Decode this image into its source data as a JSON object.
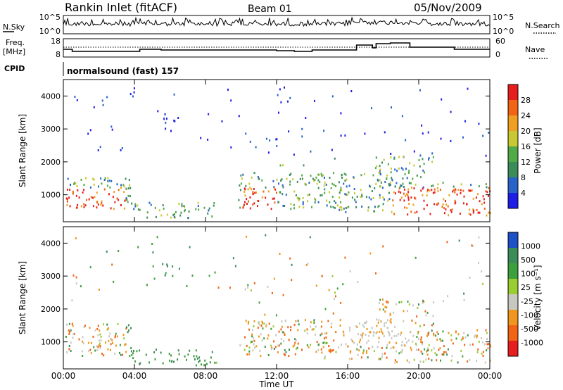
{
  "header": {
    "title": "Rankin Inlet (fitACF)",
    "beam": "Beam 01",
    "date": "05/Nov/2009"
  },
  "nsky_panel": {
    "left_label": "N.Sky",
    "right_label": "N.Search",
    "left_ticks": [
      "10^5",
      "10^0"
    ],
    "right_ticks": [
      "10^5",
      "10^0"
    ]
  },
  "freq_panel": {
    "left_label_line1": "Freq.",
    "left_label_line2": "[MHz]",
    "right_label": "Nave",
    "left_ticks": [
      "18",
      "8"
    ],
    "right_ticks": [
      "60",
      "0"
    ]
  },
  "cpid_panel": {
    "label": "CPID",
    "value": "normalsound (fast) 157"
  },
  "colors": {
    "power": [
      "#1e1ee6",
      "#2864c8",
      "#3c8c5a",
      "#50aa46",
      "#c8c832",
      "#f0a020",
      "#f06414",
      "#e61e1e"
    ],
    "velocity": [
      "#e61e1e",
      "#f06414",
      "#f0961e",
      "#c8c8c0",
      "#9acd32",
      "#3ca03c",
      "#3c8c5a",
      "#1e50c8"
    ]
  },
  "chart_data": [
    {
      "type": "heatmap",
      "title": "",
      "ylabel": "Slant Range [km]",
      "xlabel": "",
      "x_ticks": [
        "00:00",
        "04:00",
        "08:00",
        "12:00",
        "16:00",
        "20:00",
        "00:00"
      ],
      "xlim": [
        0,
        24
      ],
      "ylim": [
        180,
        4500
      ],
      "y_ticks": [
        1000,
        2000,
        3000,
        4000
      ],
      "colorbar": {
        "label": "Power [dB]",
        "ticks": [
          "28",
          "24",
          "20",
          "16",
          "12",
          "8",
          "4"
        ]
      }
    },
    {
      "type": "heatmap",
      "title": "",
      "ylabel": "Slant Range [km]",
      "xlabel": "Time UT",
      "x_ticks": [
        "00:00",
        "04:00",
        "08:00",
        "12:00",
        "16:00",
        "20:00",
        "00:00"
      ],
      "xlim": [
        0,
        24
      ],
      "ylim": [
        180,
        4500
      ],
      "y_ticks": [
        1000,
        2000,
        3000,
        4000
      ],
      "colorbar": {
        "label": "Velocity [m s⁻¹]",
        "ticks": [
          "1000",
          "500",
          "100",
          "25",
          "-25",
          "-100",
          "-500",
          "-1000"
        ]
      }
    }
  ]
}
